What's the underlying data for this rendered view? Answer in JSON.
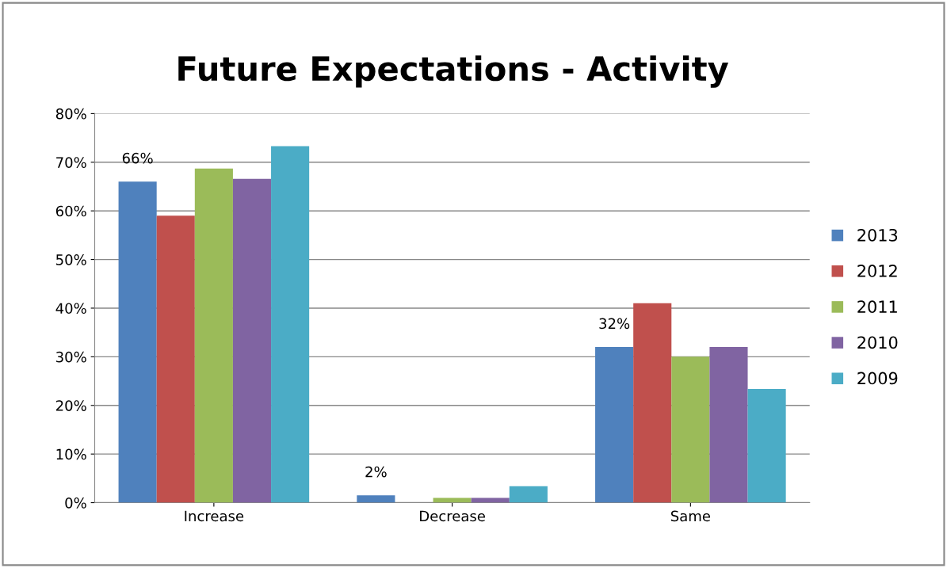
{
  "chart_data": {
    "type": "bar",
    "title": "Future Expectations - Activity",
    "categories": [
      "Increase",
      "Decrease",
      "Same"
    ],
    "series": [
      {
        "name": "2013",
        "color": "#4f81bd",
        "values": [
          66,
          1.5,
          32
        ],
        "value_labels": [
          "66%",
          "2%",
          "32%"
        ]
      },
      {
        "name": "2012",
        "color": "#c0504d",
        "values": [
          59,
          0,
          41
        ]
      },
      {
        "name": "2011",
        "color": "#9bbb59",
        "values": [
          68.7,
          1,
          30
        ]
      },
      {
        "name": "2010",
        "color": "#8064a2",
        "values": [
          66.6,
          1,
          32
        ]
      },
      {
        "name": "2009",
        "color": "#4bacc6",
        "values": [
          73.3,
          3.4,
          23.4
        ]
      }
    ],
    "ylim": [
      0,
      80
    ],
    "yticks": [
      {
        "value": 0,
        "label": "0%"
      },
      {
        "value": 10,
        "label": "10%"
      },
      {
        "value": 20,
        "label": "20%"
      },
      {
        "value": 30,
        "label": "30%"
      },
      {
        "value": 40,
        "label": "40%"
      },
      {
        "value": 50,
        "label": "50%"
      },
      {
        "value": 60,
        "label": "60%"
      },
      {
        "value": 70,
        "label": "70%"
      },
      {
        "value": 80,
        "label": "80%"
      }
    ],
    "grid": "y",
    "legend": "right"
  }
}
